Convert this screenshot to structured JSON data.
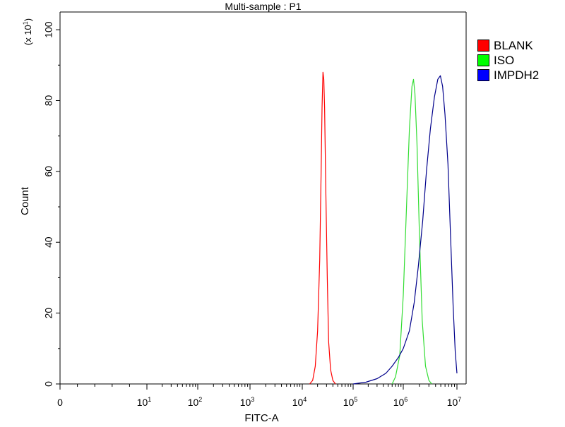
{
  "chart_data": {
    "type": "line",
    "title": "Multi-sample : P1",
    "xlabel": "FITC-A",
    "ylabel": "Count",
    "y_multiplier_label": "(x 10",
    "y_multiplier_exp": "1",
    "x_scale": "biexponential (linear near 0, log 10^1 to 10^7)",
    "xlim": [
      0,
      10000000
    ],
    "ylim": [
      0,
      105
    ],
    "x_ticks": [
      {
        "base": "0",
        "exp": "",
        "value": 0
      },
      {
        "base": "10",
        "exp": "1",
        "value": 10
      },
      {
        "base": "10",
        "exp": "2",
        "value": 100
      },
      {
        "base": "10",
        "exp": "3",
        "value": 1000
      },
      {
        "base": "10",
        "exp": "4",
        "value": 10000
      },
      {
        "base": "10",
        "exp": "5",
        "value": 100000
      },
      {
        "base": "10",
        "exp": "6",
        "value": 1000000
      },
      {
        "base": "10",
        "exp": "7",
        "value": 10000000
      }
    ],
    "y_ticks": [
      "0",
      "20",
      "40",
      "60",
      "80",
      "100"
    ],
    "y_tick_values": [
      0,
      20,
      40,
      60,
      80,
      100
    ],
    "grid": false,
    "legend_position": "right",
    "series": [
      {
        "name": "BLANK",
        "color": "#ff0000",
        "swatch": "#ff0000",
        "points": [
          [
            14000,
            0
          ],
          [
            16000,
            1
          ],
          [
            18000,
            5
          ],
          [
            20000,
            15
          ],
          [
            22000,
            35
          ],
          [
            23500,
            60
          ],
          [
            24500,
            78
          ],
          [
            25500,
            88
          ],
          [
            26500,
            86
          ],
          [
            27500,
            78
          ],
          [
            29000,
            55
          ],
          [
            31000,
            30
          ],
          [
            33000,
            12
          ],
          [
            36000,
            4
          ],
          [
            40000,
            1
          ],
          [
            45000,
            0
          ]
        ]
      },
      {
        "name": "ISO",
        "color": "#33dd33",
        "swatch": "#00ff00",
        "points": [
          [
            600000,
            0
          ],
          [
            700000,
            2
          ],
          [
            850000,
            8
          ],
          [
            1000000,
            25
          ],
          [
            1150000,
            50
          ],
          [
            1300000,
            72
          ],
          [
            1450000,
            84
          ],
          [
            1550000,
            86
          ],
          [
            1650000,
            82
          ],
          [
            1800000,
            68
          ],
          [
            2000000,
            42
          ],
          [
            2250000,
            18
          ],
          [
            2600000,
            5
          ],
          [
            3000000,
            1
          ],
          [
            3400000,
            0
          ]
        ]
      },
      {
        "name": "IMPDH2",
        "color": "#00008b",
        "swatch": "#0000ff",
        "points": [
          [
            100000,
            0
          ],
          [
            180000,
            0.5
          ],
          [
            300000,
            1.5
          ],
          [
            450000,
            3
          ],
          [
            600000,
            5
          ],
          [
            800000,
            7.5
          ],
          [
            1000000,
            10
          ],
          [
            1300000,
            15
          ],
          [
            1600000,
            23
          ],
          [
            1900000,
            33
          ],
          [
            2300000,
            46
          ],
          [
            2700000,
            60
          ],
          [
            3200000,
            72
          ],
          [
            3800000,
            81
          ],
          [
            4400000,
            86
          ],
          [
            4900000,
            87
          ],
          [
            5400000,
            84
          ],
          [
            6000000,
            76
          ],
          [
            6800000,
            62
          ],
          [
            7600000,
            42
          ],
          [
            8500000,
            22
          ],
          [
            9300000,
            9
          ],
          [
            10000000,
            3
          ]
        ]
      }
    ]
  }
}
